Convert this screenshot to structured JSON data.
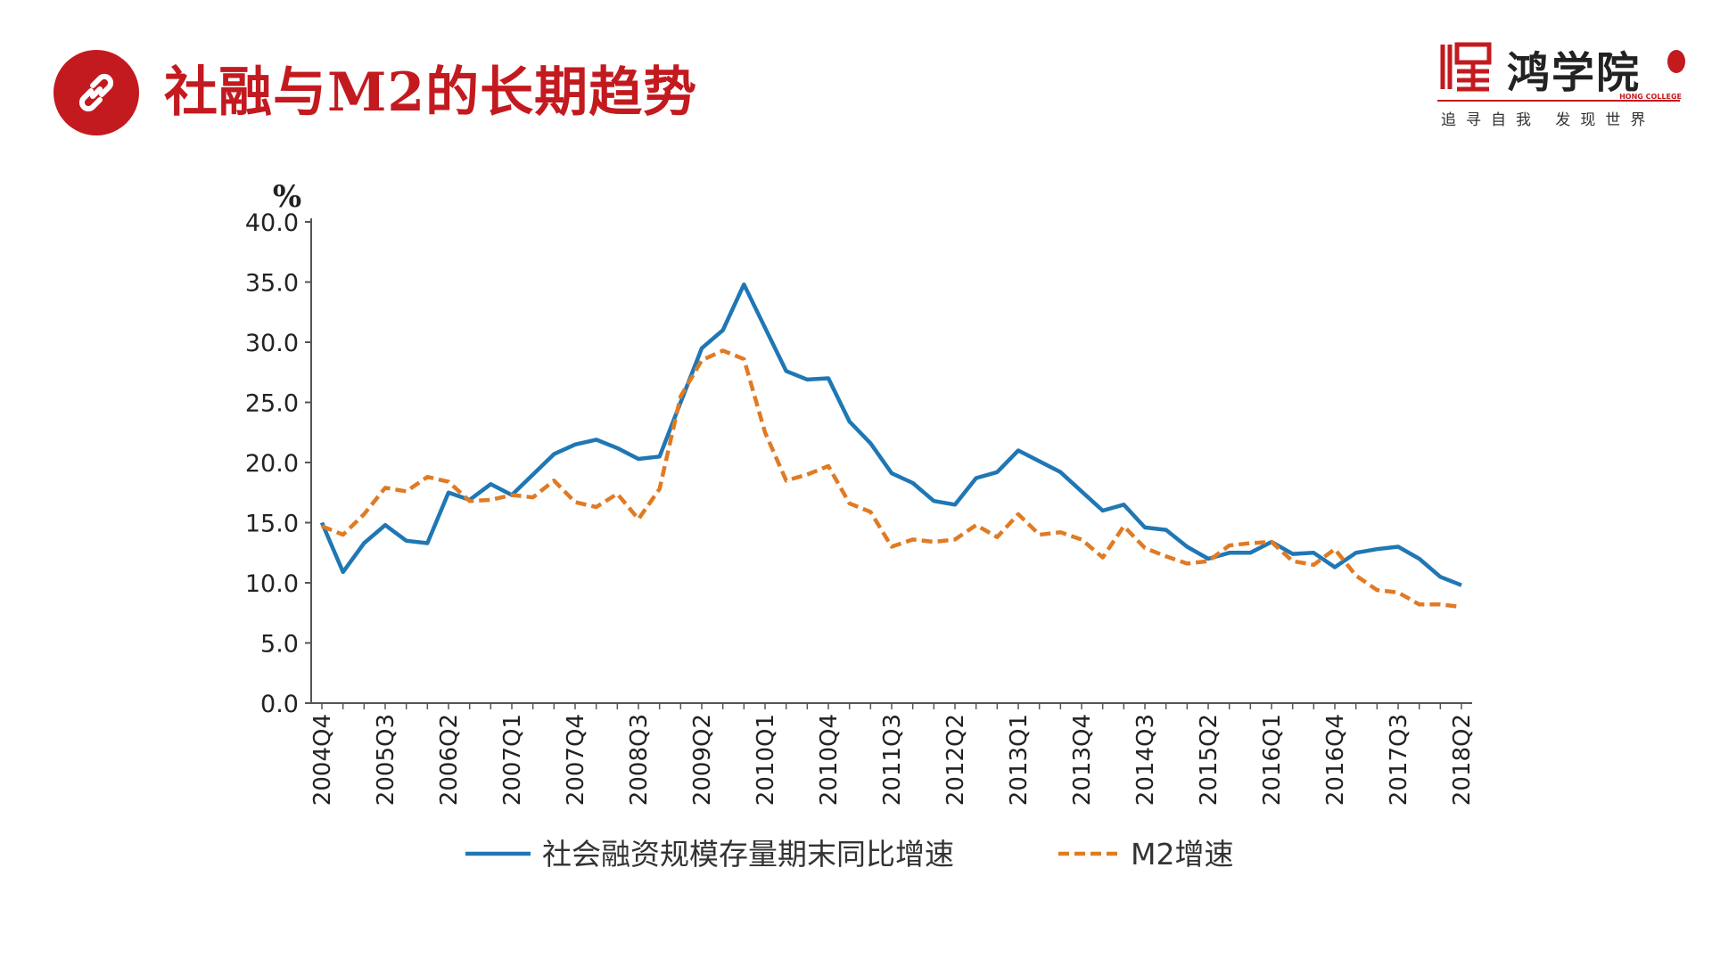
{
  "page": {
    "title": "社融与M2的长期趋势",
    "icon": "link-icon"
  },
  "logo": {
    "name": "鸿学院",
    "en": "HONG COLLEGE",
    "slogan": "追寻自我 发现世界"
  },
  "colors": {
    "brand_red": "#c31a1f",
    "series_blue": "#1f77b4",
    "series_orange": "#e07b24"
  },
  "chart_data": {
    "type": "line",
    "ylabel": "%",
    "ylim": [
      0,
      40
    ],
    "yticks": [
      "0.0",
      "5.0",
      "10.0",
      "15.0",
      "20.0",
      "25.0",
      "30.0",
      "35.0",
      "40.0"
    ],
    "x": [
      "2004Q4",
      "2005Q1",
      "2005Q2",
      "2005Q3",
      "2005Q4",
      "2006Q1",
      "2006Q2",
      "2006Q3",
      "2006Q4",
      "2007Q1",
      "2007Q2",
      "2007Q3",
      "2007Q4",
      "2008Q1",
      "2008Q2",
      "2008Q3",
      "2008Q4",
      "2009Q1",
      "2009Q2",
      "2009Q3",
      "2009Q4",
      "2010Q1",
      "2010Q2",
      "2010Q3",
      "2010Q4",
      "2011Q1",
      "2011Q2",
      "2011Q3",
      "2011Q4",
      "2012Q1",
      "2012Q2",
      "2012Q3",
      "2012Q4",
      "2013Q1",
      "2013Q2",
      "2013Q3",
      "2013Q4",
      "2014Q1",
      "2014Q2",
      "2014Q3",
      "2014Q4",
      "2015Q1",
      "2015Q2",
      "2015Q3",
      "2015Q4",
      "2016Q1",
      "2016Q2",
      "2016Q3",
      "2016Q4",
      "2017Q1",
      "2017Q2",
      "2017Q3",
      "2017Q4",
      "2018Q1",
      "2018Q2"
    ],
    "xticks": [
      "2004Q4",
      "2005Q3",
      "2006Q2",
      "2007Q1",
      "2007Q4",
      "2008Q3",
      "2009Q2",
      "2010Q1",
      "2010Q4",
      "2011Q3",
      "2012Q2",
      "2013Q1",
      "2013Q4",
      "2014Q3",
      "2015Q2",
      "2016Q1",
      "2016Q4",
      "2017Q3",
      "2018Q2"
    ],
    "series": [
      {
        "name": "社会融资规模存量期末同比增速",
        "style": "solid",
        "values": [
          15.0,
          10.9,
          13.3,
          14.8,
          13.5,
          13.3,
          17.5,
          16.9,
          18.2,
          17.3,
          19.0,
          20.7,
          21.5,
          21.9,
          21.2,
          20.3,
          20.5,
          25.0,
          29.5,
          31.0,
          34.8,
          31.2,
          27.6,
          26.9,
          27.0,
          23.4,
          21.6,
          19.1,
          18.3,
          16.8,
          16.5,
          18.7,
          19.2,
          21.0,
          20.1,
          19.2,
          17.6,
          16.0,
          16.5,
          14.6,
          14.4,
          13.0,
          12.0,
          12.5,
          12.5,
          13.4,
          12.4,
          12.5,
          11.3,
          12.5,
          12.8,
          13.0,
          12.0,
          10.5,
          9.8
        ]
      },
      {
        "name": "M2增速",
        "style": "dashed",
        "values": [
          14.7,
          14.0,
          15.7,
          17.9,
          17.6,
          18.8,
          18.4,
          16.8,
          16.9,
          17.3,
          17.1,
          18.5,
          16.7,
          16.3,
          17.4,
          15.3,
          17.8,
          25.5,
          28.5,
          29.3,
          28.6,
          22.5,
          18.5,
          19.0,
          19.7,
          16.6,
          15.9,
          13.0,
          13.6,
          13.4,
          13.6,
          14.8,
          13.8,
          15.7,
          14.0,
          14.2,
          13.6,
          12.1,
          14.7,
          12.9,
          12.2,
          11.6,
          11.8,
          13.1,
          13.3,
          13.4,
          11.8,
          11.5,
          12.8,
          10.6,
          9.4,
          9.2,
          8.2,
          8.2,
          8.0
        ]
      }
    ],
    "legend_position": "bottom",
    "grid": false
  }
}
